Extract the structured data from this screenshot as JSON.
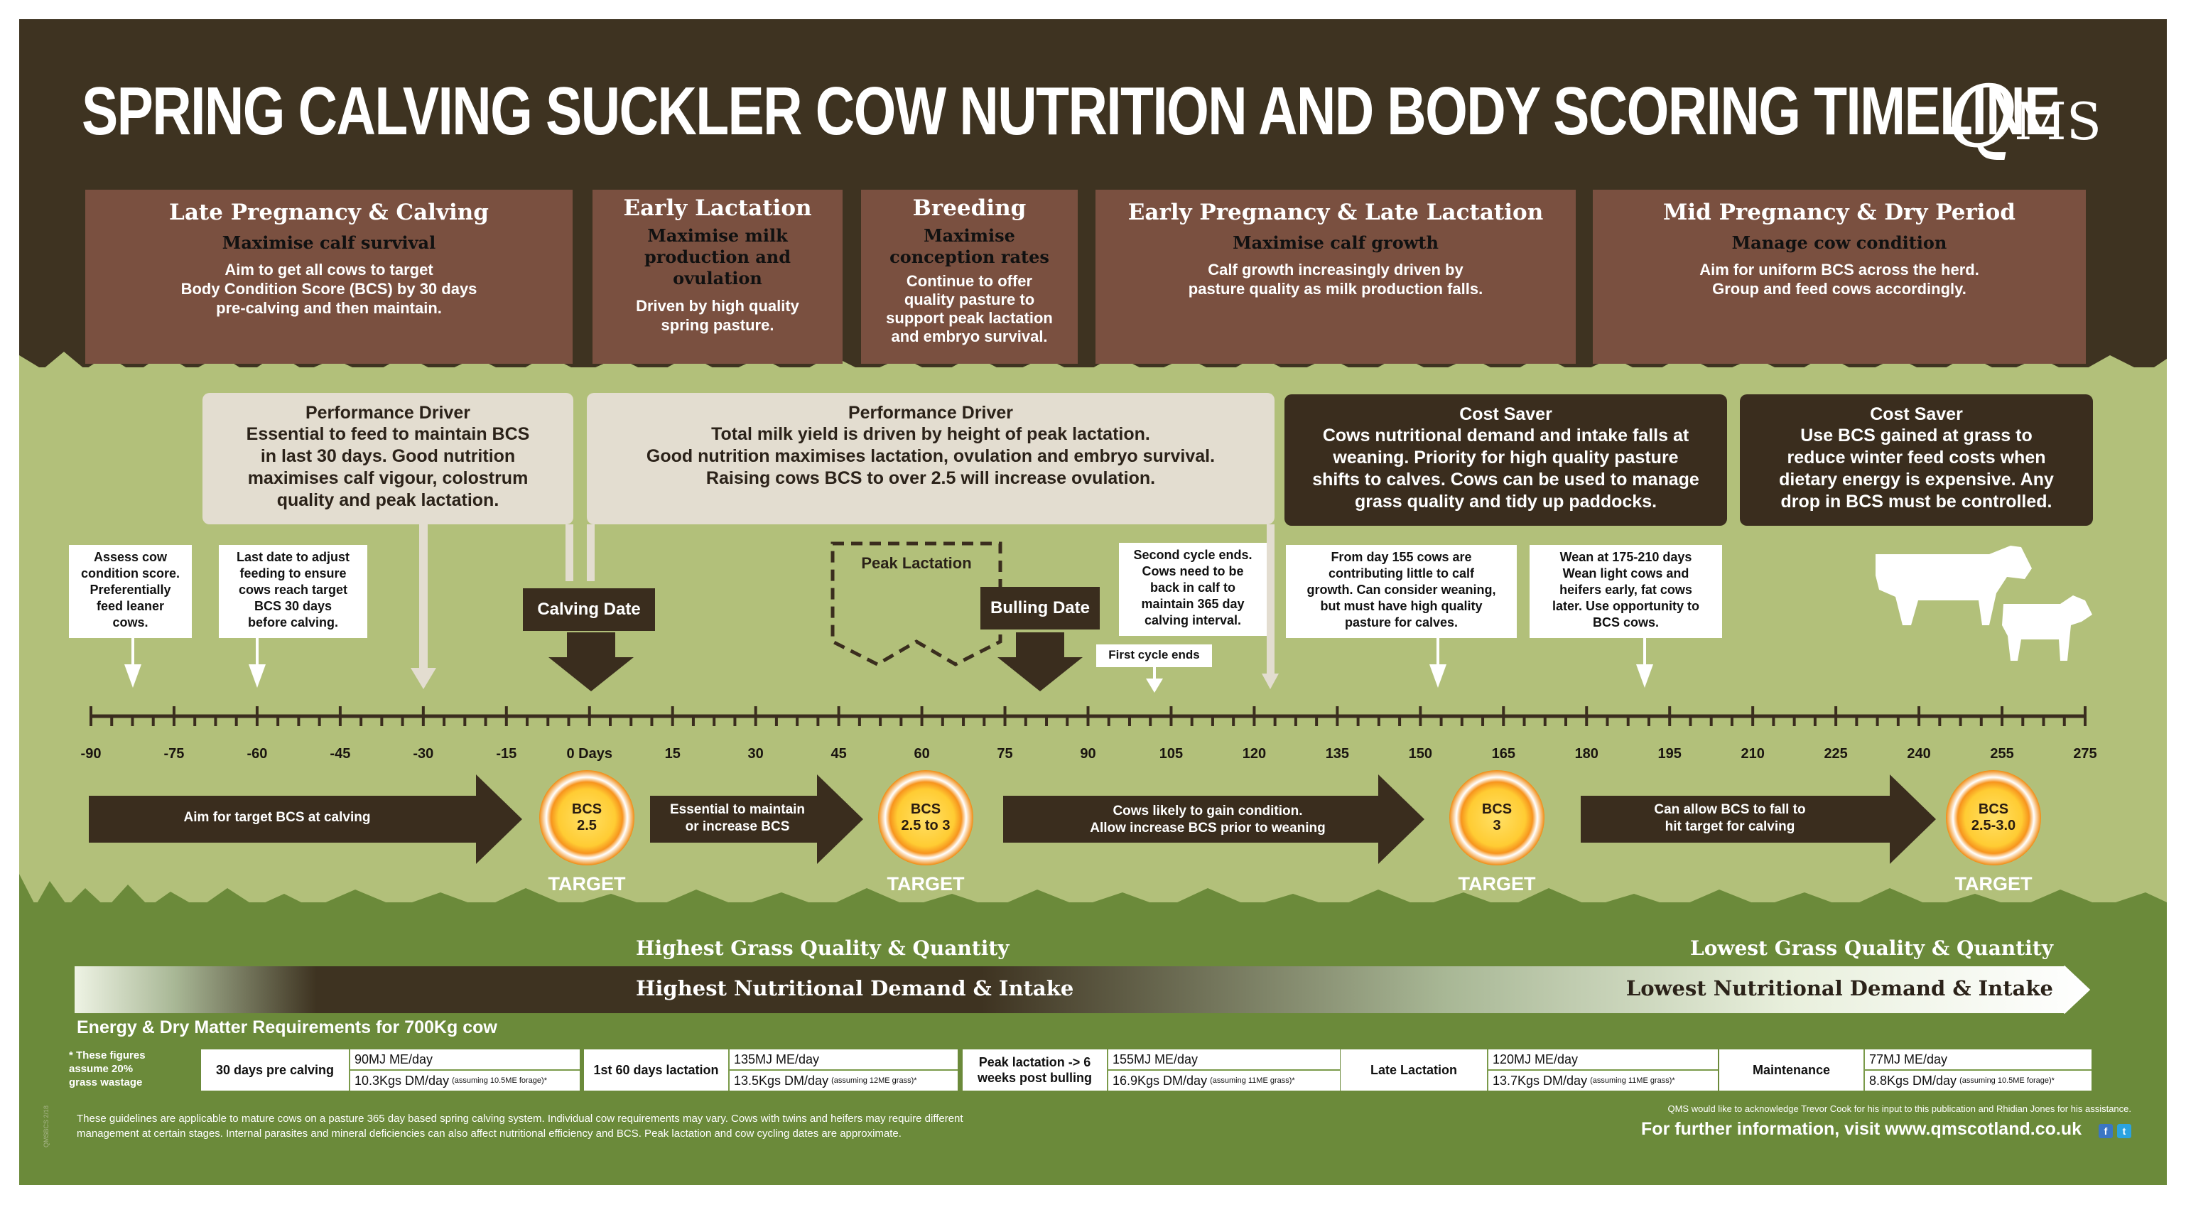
{
  "title": "SPRING CALVING SUCKLER COW NUTRITION AND BODY SCORING TIMELINE",
  "logo": "QMS",
  "colors": {
    "dark_brown": "#3e3321",
    "phase_brown": "#7a5040",
    "grass_green": "#b2c07a",
    "deep_green": "#6b8a3a",
    "bcs_orange": "#f7941d",
    "bcs_yellow": "#ffcc33"
  },
  "phases": [
    {
      "title": "Late Pregnancy & Calving",
      "subtitle": "Maximise calf survival",
      "body": "Aim to get all cows to target\nBody Condition Score (BCS) by 30 days\npre-calving and then maintain."
    },
    {
      "title": "Early Lactation",
      "subtitle": "Maximise milk\nproduction and\novulation",
      "body": "Driven by high quality\nspring pasture."
    },
    {
      "title": "Breeding",
      "subtitle": "Maximise\nconception rates",
      "body": "Continue to offer\nquality pasture to\nsupport peak lactation\nand embryo survival."
    },
    {
      "title": "Early Pregnancy & Late Lactation",
      "subtitle": "Maximise calf growth",
      "body": "Calf growth increasingly driven by\npasture quality as milk production falls."
    },
    {
      "title": "Mid Pregnancy & Dry Period",
      "subtitle": "Manage cow condition",
      "body": "Aim for uniform BCS across the herd.\nGroup and feed cows accordingly."
    }
  ],
  "drivers": [
    {
      "title": "Performance Driver",
      "body": "Essential to feed to maintain BCS\nin last 30 days. Good nutrition\nmaximises calf vigour, colostrum\nquality and peak lactation."
    },
    {
      "title": "Performance Driver",
      "body": "Total milk yield is driven by height of peak lactation.\nGood nutrition maximises lactation, ovulation and embryo survival.\nRaising cows BCS to over 2.5 will increase ovulation."
    },
    {
      "title": "Cost Saver",
      "body": "Cows nutritional demand and intake falls at\nweaning. Priority for high quality pasture\nshifts to calves. Cows can be used to manage\ngrass quality and tidy up paddocks."
    },
    {
      "title": "Cost Saver",
      "body": "Use BCS gained at grass to\nreduce winter feed costs when\ndietary energy is expensive. Any\ndrop in BCS must be controlled."
    }
  ],
  "notes": [
    "Assess cow\ncondition score.\nPreferentially\nfeed leaner\ncows.",
    "Last date to adjust\nfeeding to ensure\ncows reach target\nBCS 30 days\nbefore calving.",
    "Second cycle ends.\nCows need to be\nback in calf to\nmaintain 365 day\ncalving interval.",
    "First cycle ends",
    "From day 155 cows are\ncontributing little to calf\ngrowth. Can consider weaning,\nbut must have high quality\npasture for calves.",
    "Wean at 175-210 days\nWean light cows and\nheifers early, fat cows\nlater. Use opportunity to\nBCS cows."
  ],
  "events": {
    "calving": "Calving Date",
    "bulling": "Bulling Date",
    "peak": "Peak Lactation"
  },
  "axis_ticks": [
    "-90",
    "-75",
    "-60",
    "-45",
    "-30",
    "-15",
    "0 Days",
    "15",
    "30",
    "45",
    "60",
    "75",
    "90",
    "105",
    "120",
    "135",
    "150",
    "165",
    "180",
    "195",
    "210",
    "225",
    "240",
    "255",
    "275"
  ],
  "arrows": [
    "Aim for target BCS at calving",
    "Essential to maintain\nor increase BCS",
    "Cows likely to gain condition.\nAllow increase BCS prior to weaning",
    "Can allow BCS to fall to\nhit target for calving"
  ],
  "targets": [
    {
      "bcs": "BCS\n2.5",
      "label": "TARGET"
    },
    {
      "bcs": "BCS\n2.5 to 3",
      "label": "TARGET"
    },
    {
      "bcs": "BCS\n3",
      "label": "TARGET"
    },
    {
      "bcs": "BCS\n2.5-3.0",
      "label": "TARGET"
    }
  ],
  "grass": {
    "high_quality": "Highest Grass Quality & Quantity",
    "low_quality": "Lowest Grass Quality & Quantity",
    "high_demand": "Highest Nutritional Demand & Intake",
    "low_demand": "Lowest Nutritional Demand & Intake"
  },
  "energy": {
    "title": "Energy & Dry Matter Requirements for 700Kg cow",
    "footnote": "* These figures\n  assume 20%\n  grass wastage",
    "items": [
      {
        "label": "30 days pre calving",
        "me": "90MJ ME/day",
        "dm": "10.3Kgs DM/day",
        "note": "(assuming 10.5ME forage)*"
      },
      {
        "label": "1st 60 days lactation",
        "me": "135MJ ME/day",
        "dm": "13.5Kgs DM/day",
        "note": "(assuming 12ME grass)*"
      },
      {
        "label": "Peak lactation -> 6\nweeks post bulling",
        "me": "155MJ ME/day",
        "dm": "16.9Kgs DM/day",
        "note": "(assuming 11ME grass)*"
      },
      {
        "label": "Late Lactation",
        "me": "120MJ ME/day",
        "dm": "13.7Kgs DM/day",
        "note": "(assuming 11ME grass)*"
      },
      {
        "label": "Maintenance",
        "me": "77MJ ME/day",
        "dm": "8.8Kgs DM/day",
        "note": "(assuming 10.5ME forage)*"
      }
    ]
  },
  "footer": {
    "disclaimer": "These guidelines are applicable to mature cows on a pasture 365 day based spring calving system. Individual cow requirements may vary. Cows with twins and heifers may require different\nmanagement at certain stages. Internal parasites and mineral deficiencies can also affect nutritional efficiency and BCS. Peak lactation and cow cycling dates are approximate.",
    "acknowledgement": "QMS would like to acknowledge Trevor Cook for his input to this publication and Rhidian Jones for his assistance.",
    "further_info": "For further information, visit www.qmscotland.co.uk",
    "side_code": "QMSBCS 2/18",
    "social": [
      "f",
      "t"
    ]
  }
}
